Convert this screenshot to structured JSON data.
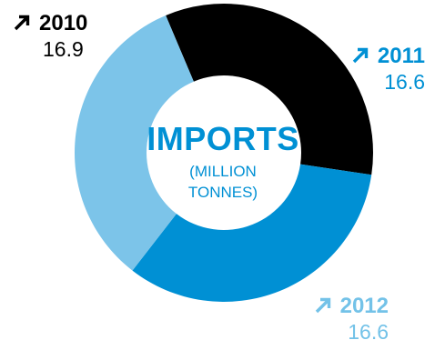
{
  "chart_data": {
    "type": "pie",
    "donut": true,
    "title": "IMPORTS",
    "subtitle": "(MILLION TONNES)",
    "categories": [
      "2010",
      "2011",
      "2012"
    ],
    "values": [
      16.9,
      16.6,
      16.6
    ],
    "value_labels": [
      "16.9",
      "16.6",
      "16.6"
    ],
    "colors": [
      "#000000",
      "#0090d4",
      "#7cc4e9"
    ],
    "label_colors": [
      "#000000",
      "#0090d4",
      "#73c2e8"
    ],
    "trend_icon": "arrow-up-right-icon"
  },
  "center": {
    "title": "IMPORTS",
    "subtitle_line1": "(MILLION",
    "subtitle_line2": "TONNES)"
  }
}
